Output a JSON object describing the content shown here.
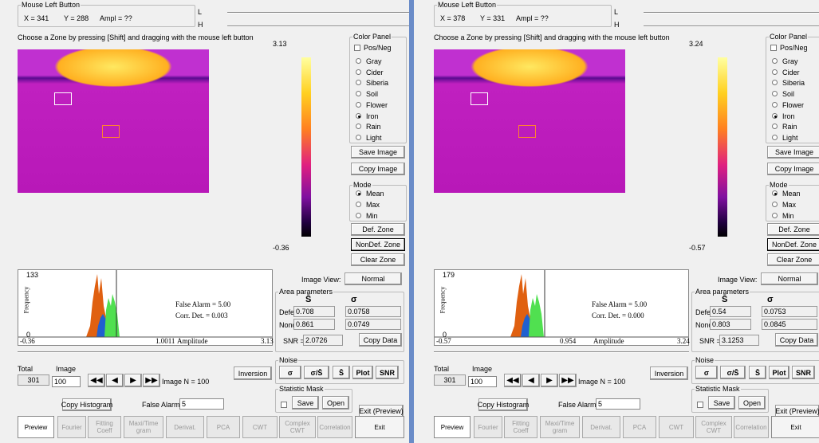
{
  "labels": {
    "mouse_left_button": "Mouse Left Button",
    "ampl": "Ampl = ??",
    "l": "L",
    "h": "H",
    "instructions": "Choose a Zone by pressing [Shift] and dragging with the mouse left button",
    "color_panel": "Color Panel",
    "pos_neg": "Pos/Neg",
    "palettes": [
      "Gray",
      "Cider",
      "Siberia",
      "Soil",
      "Flower",
      "Iron",
      "Rain",
      "Light"
    ],
    "save_image": "Save Image",
    "copy_image": "Copy Image",
    "mode": "Mode",
    "modes": [
      "Mean",
      "Max",
      "Min"
    ],
    "def_zone": "Def. Zone",
    "nondef_zone": "NonDef. Zone",
    "clear_zone": "Clear Zone",
    "frequency": "Frequency",
    "false_alarm_value": "False Alarm = 5.00",
    "amplitude": "Amplitude",
    "hist_zero": "0",
    "image_view": "Image View:",
    "normal": "Normal",
    "area_parameters": "Area parameters",
    "mean_symbol": "S̄",
    "sigma_symbol": "σ",
    "defect": "Defect",
    "nondef": "Nondef",
    "snr_eq": "SNR =",
    "copy_data": "Copy Data",
    "total": "Total",
    "image": "Image",
    "total_value": "301",
    "image_value": "100",
    "image_n": "Image N = 100",
    "inversion": "Inversion",
    "noise": "Noise",
    "noise_buttons": [
      "σ",
      "σ/S̄",
      "S̄",
      "Plot",
      "SNR"
    ],
    "statistic_mask": "Statistic Mask",
    "save": "Save",
    "open": "Open",
    "copy_histogram": "Copy Histogram",
    "false_alarm_pct": "False Alarm, %",
    "false_alarm_input": "5",
    "exit_preview": "Exit (Preview)",
    "tabs": [
      "Preview",
      "Fourier",
      "Fitting Coeff",
      "Maxi/Time gram",
      "Derivat.",
      "PCA",
      "CWT",
      "Complex CWT",
      "Correlation",
      "Exit"
    ]
  },
  "panels": [
    {
      "x": "X = 341",
      "y": "Y = 288",
      "color_max": "3.13",
      "color_min": "-0.36",
      "hist_max": "133",
      "corr_det": "Corr. Det. = 0.003",
      "amp_min": "-0.36",
      "threshold": "1.0011",
      "amp_max": "3.13",
      "defect_mean": "0.708",
      "defect_sigma": "0.0758",
      "nondef_mean": "0.861",
      "nondef_sigma": "0.0749",
      "snr": "2.0726"
    },
    {
      "x": "X = 378",
      "y": "Y = 331",
      "color_max": "3.24",
      "color_min": "-0.57",
      "hist_max": "179",
      "corr_det": "Corr. Det. = 0.000",
      "amp_min": "-0.57",
      "threshold": "0.954",
      "amp_max": "3.24",
      "defect_mean": "0.54",
      "defect_sigma": "0.0753",
      "nondef_mean": "0.803",
      "nondef_sigma": "0.0845",
      "snr": "3.1253"
    }
  ]
}
